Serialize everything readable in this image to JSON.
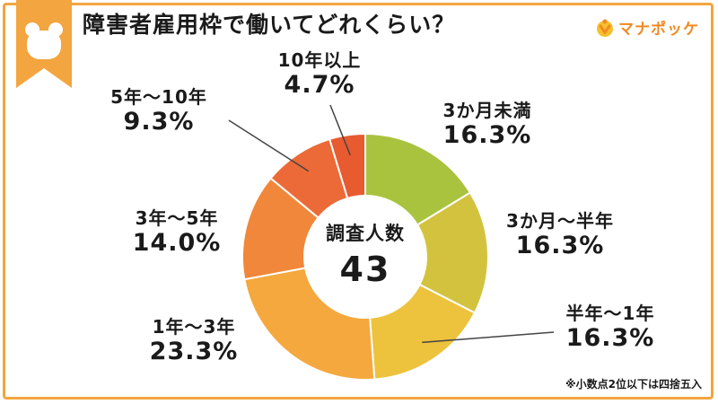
{
  "title": "障害者雇用枠で働いてどれくらい？",
  "logo": {
    "text": "マナポッケ",
    "icon": "logo-icon"
  },
  "colors": {
    "frame": "#f3a53f",
    "segments": [
      "#a9c33f",
      "#d3c23e",
      "#edc23d",
      "#f4a83d",
      "#f0873a",
      "#ec6a38",
      "#e85a30"
    ]
  },
  "center": {
    "label": "調査人数",
    "value": "43"
  },
  "note": "※小数点2位以下は四捨五入",
  "chart_data": {
    "type": "pie",
    "donut": true,
    "categories": [
      "3か月未満",
      "3か月～半年",
      "半年～1年",
      "1年～3年",
      "3年～5年",
      "5年～10年",
      "10年以上"
    ],
    "values": [
      16.3,
      16.3,
      16.3,
      23.3,
      14.0,
      9.3,
      4.7
    ],
    "value_labels": [
      "16.3%",
      "16.3%",
      "16.3%",
      "23.3%",
      "14.0%",
      "9.3%",
      "4.7%"
    ],
    "direction": "clockwise",
    "start": "top",
    "legend": "none"
  }
}
